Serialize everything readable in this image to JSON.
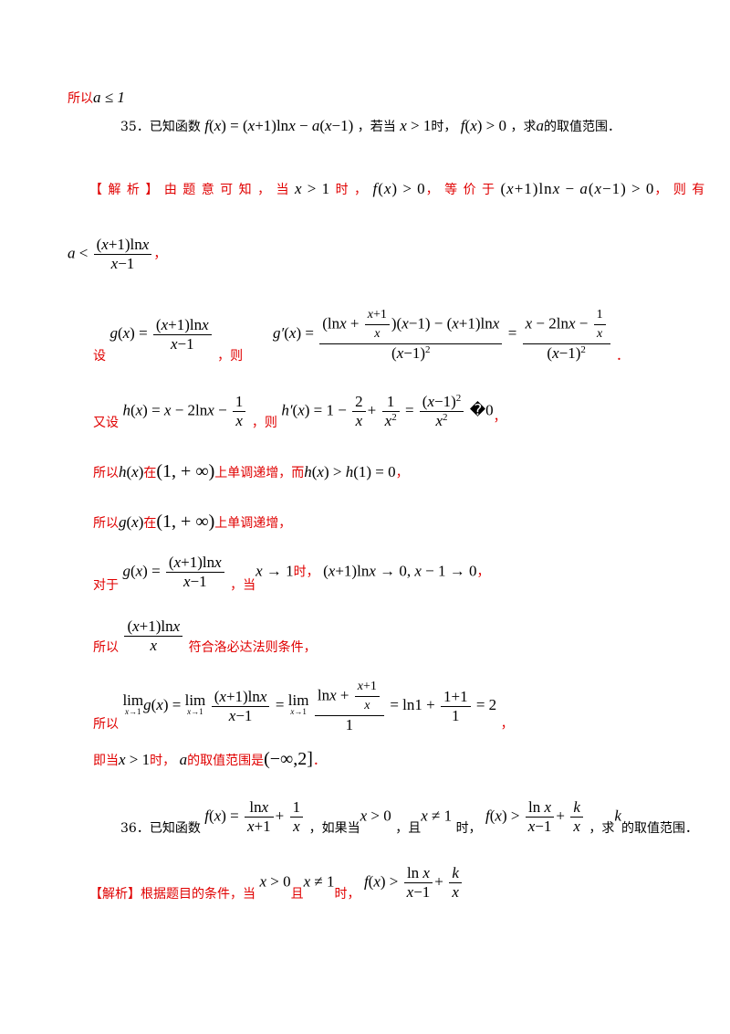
{
  "l1": {
    "text": "所以",
    "math": "a ≤ 1"
  },
  "q35": {
    "num": "35．",
    "t1": "已知函数",
    "t2": "，若当",
    "t3": "时，",
    "t4": "，求",
    "t5": "的取值范围．"
  },
  "sol35": {
    "tag": "【 解 析 】",
    "t1": "由 题 意 可 知 ， 当",
    "t2": "时 ，",
    "t3": "， 等 价 于",
    "t4": "， 则 有"
  },
  "l4": {
    "t1": "，"
  },
  "l5": {
    "t1": "设",
    "t2": "，则",
    "t3": "．"
  },
  "l6": {
    "t1": "又设",
    "t2": "，则",
    "t3": "�0",
    "t4": "，"
  },
  "l7": {
    "t1": "所以",
    "t2": "在",
    "t3": "上单调递增，而",
    "t4": "，"
  },
  "l8": {
    "t1": "所以",
    "t2": "在",
    "t3": "上单调递增，"
  },
  "l9": {
    "t1": "对于",
    "t2": "，当",
    "t3": "时，",
    "t4": "，"
  },
  "l10": {
    "t1": "所以",
    "t2": "符合洛必达法则条件，"
  },
  "l11": {
    "t1": "所以",
    "t2": "，"
  },
  "l12": {
    "t1": "即当",
    "t2": "时，",
    "t3": "的取值范围是",
    "t4": "．"
  },
  "q36": {
    "num": "36．",
    "t1": "已知函数",
    "t2": "，如果当",
    "t3": "，且",
    "t4": "时，",
    "t5": "，求",
    "t6": "的取值范围．"
  },
  "sol36": {
    "tag": "【解析】",
    "t1": "根据题目的条件，当",
    "t2": "且",
    "t3": "时，"
  }
}
